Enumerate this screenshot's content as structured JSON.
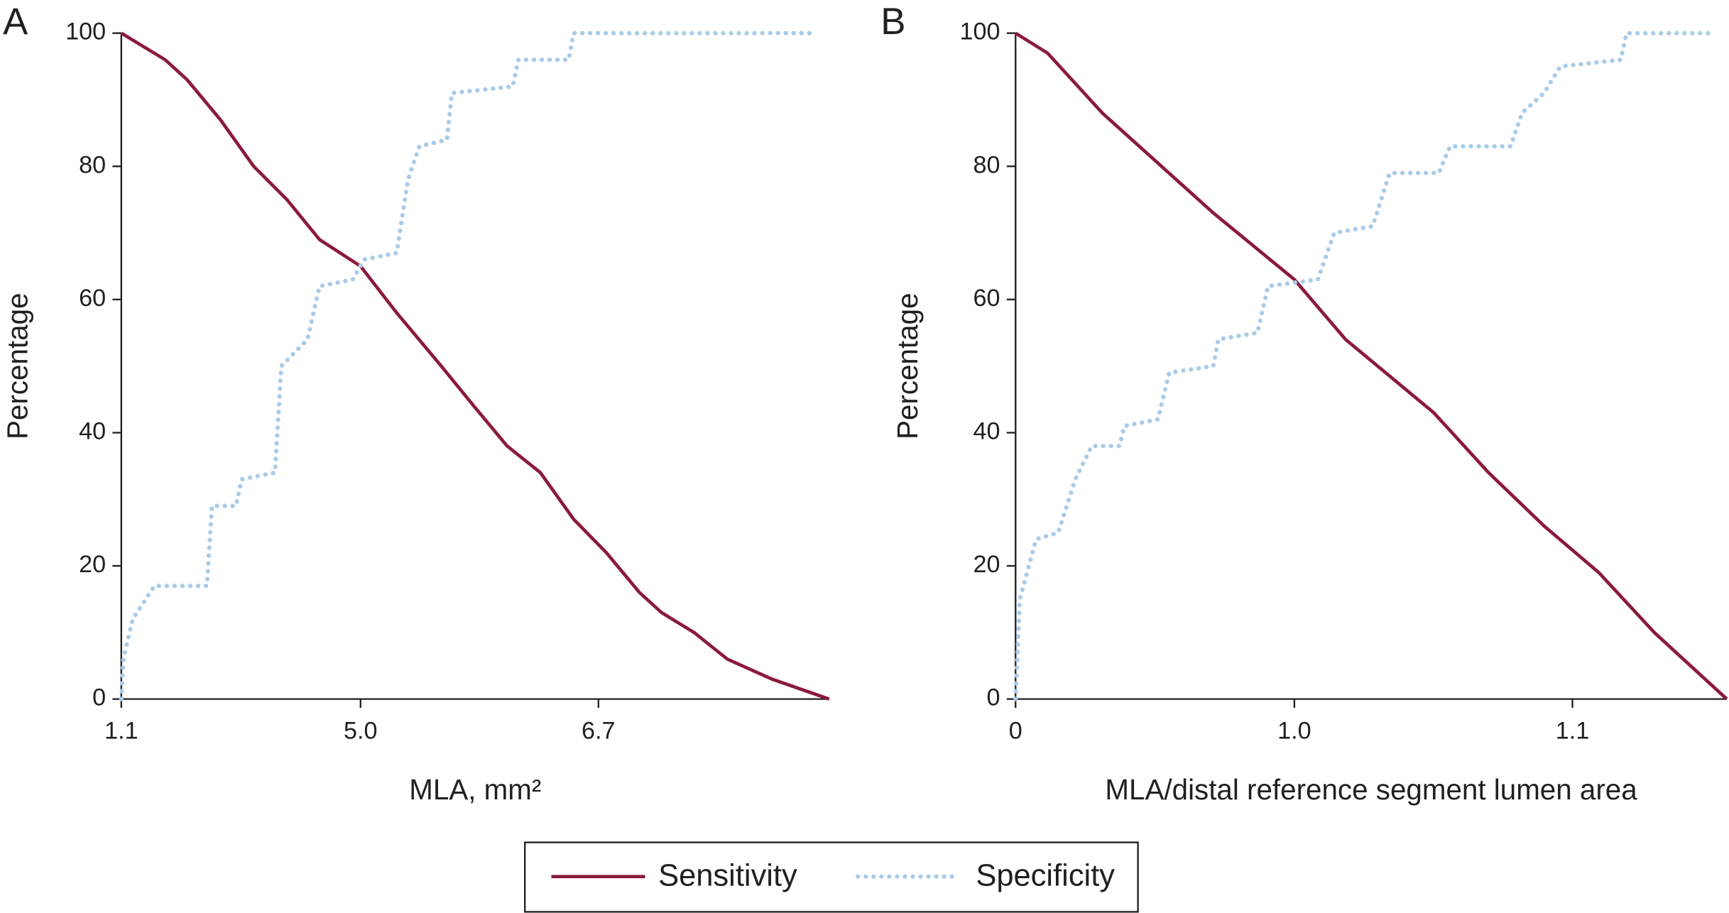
{
  "chart_data": [
    {
      "type": "line",
      "label": "A",
      "xlabel": "MLA, mm²",
      "ylabel": "Percentage",
      "xlim": [
        0,
        100
      ],
      "xticks": [
        {
          "value": 0,
          "label": "1.1"
        },
        {
          "value": 33.8,
          "label": "5.0"
        },
        {
          "value": 67.4,
          "label": "6.7"
        }
      ],
      "ylim": [
        0,
        100
      ],
      "yticks": [
        0,
        20,
        40,
        60,
        80,
        100
      ],
      "series": [
        {
          "name": "Sensitivity",
          "color": "#8b1a3a",
          "style": "solid",
          "x": [
            0,
            6.2,
            9.3,
            14.0,
            18.7,
            23.4,
            28.0,
            33.8,
            38.9,
            45.2,
            49.8,
            54.5,
            59.2,
            63.9,
            68.5,
            73.2,
            76.3,
            80.9,
            85.6,
            91.9,
            100
          ],
          "values": [
            100,
            96,
            93,
            87,
            80,
            75,
            69,
            65,
            58,
            50,
            44,
            38,
            34,
            27,
            22,
            16,
            13,
            10,
            6,
            3,
            0
          ]
        },
        {
          "name": "Specificity",
          "color": "#a9cbe8",
          "style": "dotted",
          "x": [
            0,
            0.3,
            1.6,
            4.7,
            12.1,
            12.8,
            16.2,
            17.0,
            21.7,
            22.6,
            26.3,
            28.0,
            32.7,
            34.3,
            38.9,
            40.5,
            42.1,
            46.0,
            46.7,
            55.3,
            56.1,
            63.2,
            63.9,
            97.4
          ],
          "values": [
            0,
            6,
            12,
            17,
            17,
            29,
            29,
            33,
            34,
            50,
            54,
            62,
            63,
            66,
            67,
            78,
            83,
            84,
            91,
            92,
            96,
            96,
            100,
            100
          ]
        }
      ]
    },
    {
      "type": "line",
      "label": "B",
      "xlabel": "MLA/distal reference segment lumen area",
      "ylabel": "Percentage",
      "xlim": [
        0,
        100
      ],
      "xticks": [
        {
          "value": 0,
          "label": "0"
        },
        {
          "value": 39.2,
          "label": "1.0"
        },
        {
          "value": 78.3,
          "label": "1.1"
        }
      ],
      "ylim": [
        0,
        100
      ],
      "yticks": [
        0,
        20,
        40,
        60,
        80,
        100
      ],
      "series": [
        {
          "color": "#8b1a3a",
          "style": "solid",
          "x": [
            0,
            4.5,
            12.2,
            27.8,
            39.2,
            46.4,
            58.8,
            66.5,
            74.3,
            82.0,
            89.8,
            100
          ],
          "values": [
            100,
            97,
            88,
            73,
            63,
            54,
            43,
            34,
            26,
            19,
            10,
            0
          ]
        },
        {
          "color": "#a9cbe8",
          "style": "dotted",
          "x": [
            0,
            0.6,
            2.9,
            6.0,
            8.4,
            10.7,
            14.6,
            15.3,
            20.0,
            21.6,
            27.8,
            28.5,
            34.0,
            35.5,
            42.5,
            44.8,
            50.2,
            52.6,
            59.5,
            61.1,
            69.6,
            71.2,
            74.3,
            76.6,
            85.1,
            85.9,
            98.3
          ],
          "values": [
            0,
            15,
            24,
            25,
            33,
            38,
            38,
            41,
            42,
            49,
            50,
            54,
            55,
            62,
            63,
            70,
            71,
            79,
            79,
            83,
            83,
            88,
            91,
            95,
            96,
            100,
            100
          ]
        }
      ]
    }
  ]
}
